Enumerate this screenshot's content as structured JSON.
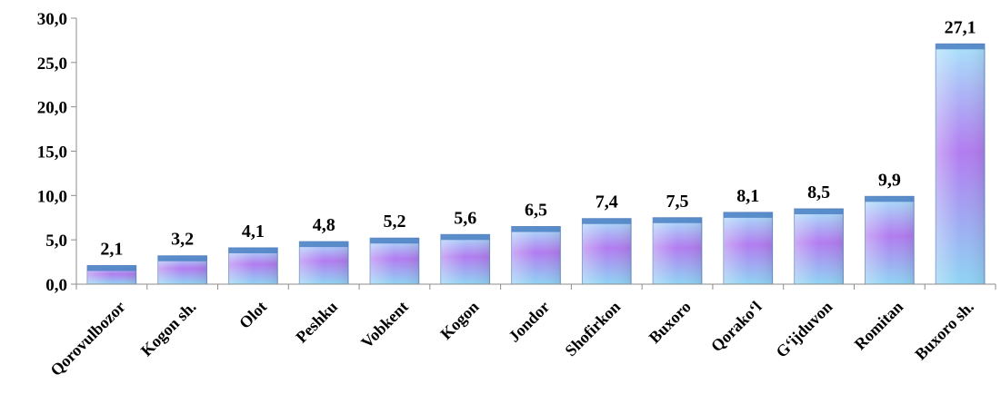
{
  "chart_data": {
    "type": "bar",
    "categories": [
      "Qorovulbozor",
      "Kogon sh.",
      "Olot",
      "Peshku",
      "Vobkent",
      "Kogon",
      "Jondor",
      "Shofirkon",
      "Buxoro",
      "Qorako‘l",
      "G‘ijduvon",
      "Romitan",
      "Buxoro sh."
    ],
    "values": [
      2.1,
      3.2,
      4.1,
      4.8,
      5.2,
      5.6,
      6.5,
      7.4,
      7.5,
      8.1,
      8.5,
      9.9,
      27.1
    ],
    "value_labels": [
      "2,1",
      "3,2",
      "4,1",
      "4,8",
      "5,2",
      "5,6",
      "6,5",
      "7,4",
      "7,5",
      "8,1",
      "8,5",
      "9,9",
      "27,1"
    ],
    "y_ticks": [
      0,
      5,
      10,
      15,
      20,
      25,
      30
    ],
    "y_tick_labels": [
      "0,0",
      "5,0",
      "10,0",
      "15,0",
      "20,0",
      "25,0",
      "30,0"
    ],
    "ylim": [
      0,
      30
    ],
    "grid": false,
    "legend": "none",
    "bar_colors": [
      "#a8e4fb",
      "#b27cf0",
      "#4a7fc2"
    ]
  }
}
